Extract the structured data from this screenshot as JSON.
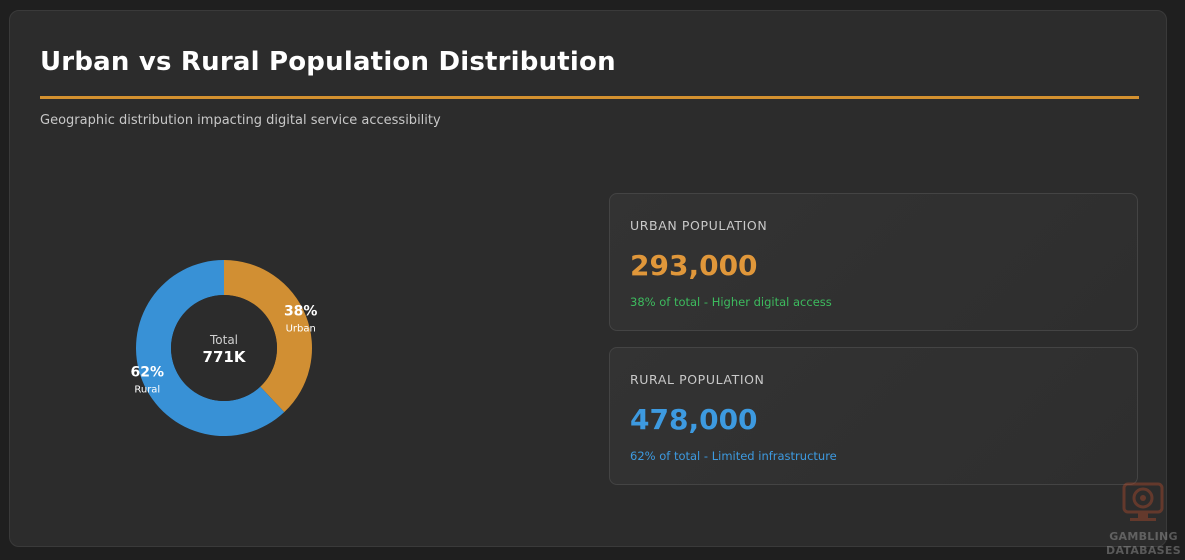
{
  "header": {
    "title": "Urban vs Rural Population Distribution",
    "subtitle": "Geographic distribution impacting digital service accessibility"
  },
  "chart_data": {
    "type": "pie",
    "donut": true,
    "categories": [
      "Urban",
      "Rural"
    ],
    "values": [
      293000,
      478000
    ],
    "percent_labels": [
      "38%",
      "62%"
    ],
    "colors": [
      "#d18f33",
      "#3891d6"
    ],
    "center_label": "Total",
    "center_value": "771K"
  },
  "stats": [
    {
      "label": "URBAN POPULATION",
      "value": "293,000",
      "note": "38% of total - Higher digital access",
      "value_color": "#e0973a",
      "note_color": "#3dbb5e"
    },
    {
      "label": "RURAL POPULATION",
      "value": "478,000",
      "note": "62% of total - Limited infrastructure",
      "value_color": "#3d9ae0",
      "note_color": "#3d9ae0"
    }
  ],
  "watermark": {
    "line1": "GAMBLING",
    "line2": "DATABASES",
    "icon": "casino-chip-monitor-icon"
  }
}
